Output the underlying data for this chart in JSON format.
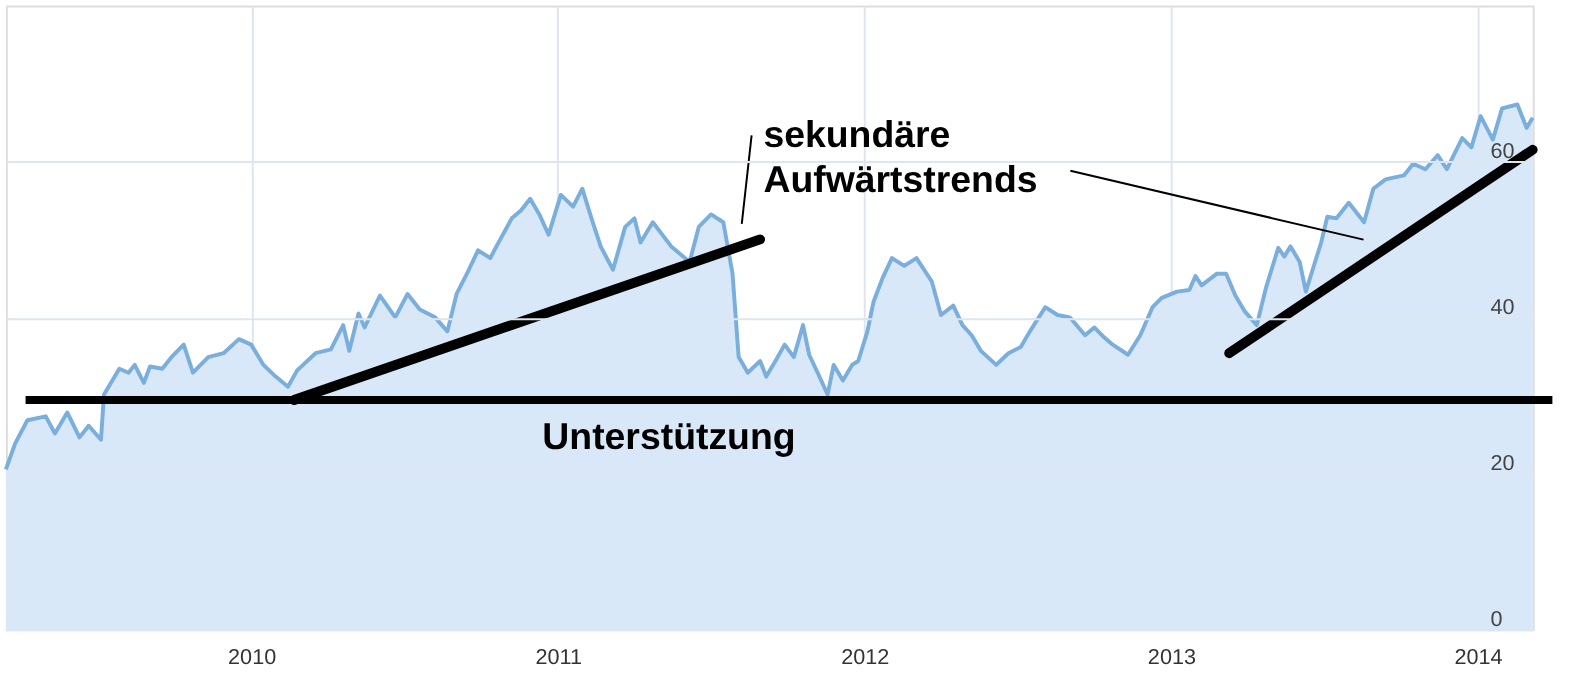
{
  "chart_data": {
    "type": "area",
    "xlim": [
      2009.2,
      2014.18
    ],
    "ylim": [
      0,
      80
    ],
    "xticks": [
      2010,
      2011,
      2012,
      2013,
      2014
    ],
    "yticks": [
      0,
      20,
      40,
      60
    ],
    "grid": true,
    "legend": false,
    "series": [
      {
        "color": "#7aaedc",
        "x": [
          2009.2,
          2009.23,
          2009.27,
          2009.33,
          2009.36,
          2009.4,
          2009.44,
          2009.47,
          2009.51,
          2009.52,
          2009.57,
          2009.6,
          2009.62,
          2009.65,
          2009.67,
          2009.71,
          2009.74,
          2009.78,
          2009.81,
          2009.86,
          2009.91,
          2009.96,
          2010.0,
          2010.04,
          2010.08,
          2010.12,
          2010.15,
          2010.21,
          2010.26,
          2010.3,
          2010.32,
          2010.35,
          2010.37,
          2010.42,
          2010.47,
          2010.51,
          2010.55,
          2010.6,
          2010.64,
          2010.67,
          2010.71,
          2010.74,
          2010.78,
          2010.8,
          2010.85,
          2010.88,
          2010.91,
          2010.94,
          2010.97,
          2011.01,
          2011.05,
          2011.08,
          2011.11,
          2011.14,
          2011.18,
          2011.22,
          2011.25,
          2011.27,
          2011.31,
          2011.37,
          2011.43,
          2011.46,
          2011.5,
          2011.54,
          2011.57,
          2011.59,
          2011.62,
          2011.66,
          2011.68,
          2011.71,
          2011.74,
          2011.77,
          2011.8,
          2011.82,
          2011.85,
          2011.88,
          2011.9,
          2011.93,
          2011.96,
          2011.98,
          2012.01,
          2012.03,
          2012.06,
          2012.09,
          2012.13,
          2012.17,
          2012.22,
          2012.25,
          2012.29,
          2012.32,
          2012.35,
          2012.38,
          2012.43,
          2012.47,
          2012.51,
          2012.54,
          2012.59,
          2012.63,
          2012.67,
          2012.72,
          2012.75,
          2012.78,
          2012.81,
          2012.86,
          2012.9,
          2012.94,
          2012.97,
          2013.02,
          2013.06,
          2013.08,
          2013.1,
          2013.15,
          2013.18,
          2013.21,
          2013.24,
          2013.28,
          2013.31,
          2013.35,
          2013.37,
          2013.39,
          2013.42,
          2013.44,
          2013.47,
          2013.49,
          2013.51,
          2013.54,
          2013.58,
          2013.63,
          2013.66,
          2013.7,
          2013.76,
          2013.79,
          2013.83,
          2013.87,
          2013.9,
          2013.95,
          2013.98,
          2014.01,
          2014.05,
          2014.08,
          2014.13,
          2014.16,
          2014.18
        ],
        "values": [
          20.5,
          23.8,
          26.8,
          27.3,
          25.1,
          27.8,
          24.6,
          26.1,
          24.3,
          30.1,
          33.4,
          32.9,
          33.9,
          31.6,
          33.7,
          33.4,
          34.9,
          36.5,
          32.9,
          34.9,
          35.4,
          37.2,
          36.5,
          33.9,
          32.4,
          31.1,
          33.2,
          35.4,
          35.9,
          39.0,
          35.7,
          40.5,
          38.7,
          42.8,
          40.0,
          43.0,
          41.0,
          40.0,
          38.2,
          43.0,
          46.1,
          48.6,
          47.6,
          49.1,
          52.7,
          53.7,
          55.2,
          53.2,
          50.6,
          55.7,
          54.2,
          56.5,
          52.7,
          49.1,
          46.1,
          51.6,
          52.7,
          49.6,
          52.2,
          49.1,
          47.1,
          51.6,
          53.2,
          52.2,
          45.6,
          34.9,
          32.9,
          34.4,
          32.4,
          34.4,
          36.5,
          34.9,
          39.0,
          35.2,
          32.7,
          30.1,
          33.9,
          31.9,
          33.9,
          34.4,
          38.2,
          42.0,
          45.1,
          47.6,
          46.6,
          47.6,
          44.6,
          40.3,
          41.5,
          39.0,
          37.7,
          35.7,
          33.9,
          35.4,
          36.2,
          38.2,
          41.3,
          40.3,
          40.0,
          37.7,
          38.7,
          37.5,
          36.5,
          35.2,
          37.7,
          41.3,
          42.5,
          43.3,
          43.5,
          45.3,
          44.1,
          45.6,
          45.6,
          42.8,
          40.8,
          39.0,
          43.8,
          48.9,
          47.8,
          49.1,
          47.1,
          43.3,
          47.1,
          49.6,
          52.9,
          52.7,
          54.7,
          52.2,
          56.5,
          57.7,
          58.2,
          59.7,
          59.0,
          60.8,
          59.0,
          63.0,
          61.8,
          65.8,
          62.8,
          66.8,
          67.3,
          64.3,
          65.6
        ]
      },
      {
        "type": "line",
        "color": "#000000",
        "x": [
          2010.14,
          2011.66
        ],
        "values": [
          29.4,
          50.0
        ]
      },
      {
        "type": "line",
        "color": "#000000",
        "x": [
          2013.19,
          2014.18
        ],
        "values": [
          35.4,
          61.5
        ]
      }
    ],
    "ref_lines": [
      {
        "axis": "y",
        "value": 29.4,
        "label": "Unterstützung",
        "color": "#000000"
      }
    ],
    "annotations": [
      "sekundäre\nAufwärtstrends"
    ]
  }
}
